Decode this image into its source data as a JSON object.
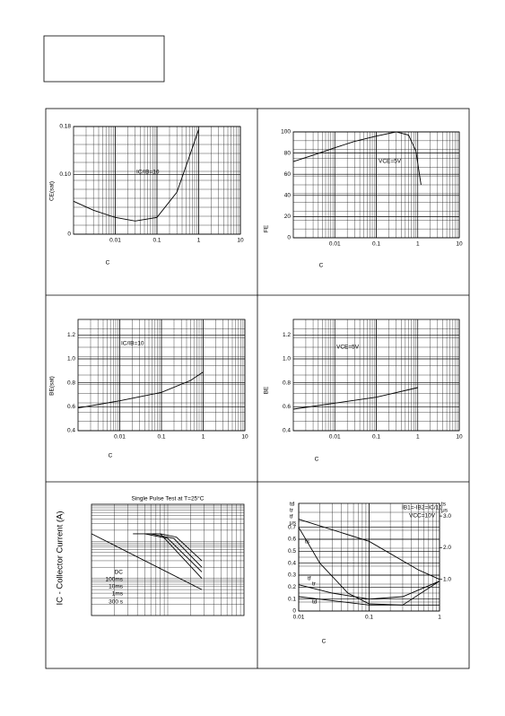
{
  "chart_data": [
    {
      "type": "line",
      "ylabel": "CE(sat)",
      "xlabel": "C",
      "annotations": [
        "IC/IB=10"
      ],
      "log_x": true,
      "grid": true,
      "xlim": [
        0.001,
        10
      ],
      "xticks": [
        0.01,
        0.1,
        1,
        10
      ],
      "ylim": [
        0,
        0.18
      ],
      "yticks": [
        0,
        {
          "value": 0.1,
          "label": "0.10"
        },
        0.18
      ],
      "x": [
        0.001,
        0.003,
        0.01,
        0.03,
        0.1,
        0.3,
        0.6,
        1
      ],
      "series": [
        {
          "color": "#000000",
          "values": [
            0.055,
            0.04,
            0.028,
            0.022,
            0.028,
            0.07,
            0.13,
            0.175
          ]
        }
      ]
    },
    {
      "type": "line",
      "ylabel": "FE",
      "xlabel": "C",
      "annotations": [
        "VCE=5V"
      ],
      "log_x": true,
      "grid": true,
      "xlim": [
        0.001,
        10
      ],
      "xticks": [
        0.01,
        0.1,
        1,
        10
      ],
      "ylim": [
        0,
        100
      ],
      "yticks": [
        0,
        20,
        40,
        60,
        80,
        100
      ],
      "x": [
        0.001,
        0.003,
        0.01,
        0.03,
        0.1,
        0.3,
        0.6,
        0.9,
        1.2
      ],
      "series": [
        {
          "color": "#000000",
          "values": [
            72,
            78,
            85,
            91,
            96,
            100,
            97,
            82,
            50
          ]
        }
      ]
    },
    {
      "type": "line",
      "ylabel": "BE(sat)",
      "xlabel": "C",
      "annotations": [
        "IC/IB=10"
      ],
      "log_x": true,
      "grid": true,
      "xlim": [
        0.001,
        10
      ],
      "xticks": [
        0.01,
        0.1,
        1,
        10
      ],
      "ylim": [
        0.4,
        1.33
      ],
      "yticks": [
        0.4,
        0.6,
        0.8,
        {
          "value": 1.0,
          "label": "1.0"
        },
        1.2
      ],
      "x": [
        0.001,
        0.01,
        0.1,
        0.5,
        1
      ],
      "series": [
        {
          "color": "#000000",
          "values": [
            0.59,
            0.65,
            0.72,
            0.82,
            0.89
          ]
        }
      ]
    },
    {
      "type": "line",
      "ylabel": "BE",
      "xlabel": "C",
      "annotations": [
        "VCE=5V"
      ],
      "log_x": true,
      "grid": true,
      "xlim": [
        0.001,
        10
      ],
      "xticks": [
        0.01,
        0.1,
        1,
        10
      ],
      "ylim": [
        0.4,
        1.33
      ],
      "yticks": [
        0.4,
        0.6,
        0.8,
        {
          "value": 1.0,
          "label": "1.0"
        },
        1.2
      ],
      "x": [
        0.001,
        0.01,
        0.1,
        1
      ],
      "series": [
        {
          "color": "#000000",
          "values": [
            0.58,
            0.63,
            0.68,
            0.76
          ]
        }
      ]
    },
    {
      "type": "line",
      "title": "Single Pulse Test at T=25°C",
      "ylabel": "IC - Collector Current (A)",
      "log_x": true,
      "log_y": true,
      "grid": true,
      "xlim": [
        1,
        100
      ],
      "ylim": [
        0.01,
        10
      ],
      "series": [
        {
          "name": "DC",
          "color": "#000000",
          "x": [
            1,
            28
          ],
          "values": [
            1.6,
            0.05
          ]
        },
        {
          "name": "100ms",
          "color": "#000000",
          "x": [
            3.5,
            8,
            28
          ],
          "values": [
            1.6,
            1.6,
            0.1
          ]
        },
        {
          "name": "10ms",
          "color": "#000000",
          "x": [
            5,
            10,
            28
          ],
          "values": [
            1.6,
            1.2,
            0.15
          ]
        },
        {
          "name": "1ms",
          "color": "#000000",
          "x": [
            6,
            12,
            28
          ],
          "values": [
            1.6,
            1.2,
            0.2
          ]
        },
        {
          "name": "300 s",
          "color": "#000000",
          "x": [
            8,
            13,
            28
          ],
          "values": [
            1.6,
            1.3,
            0.3
          ]
        }
      ]
    },
    {
      "type": "line",
      "xlabel": "C",
      "annotations": [
        "IB1=-IB2=IC/10",
        "VCC=10V"
      ],
      "ylabel_lines": [
        "td",
        "tr",
        "tf",
        "μs"
      ],
      "y2label_lines": [
        "ts",
        "μs"
      ],
      "log_x": true,
      "grid": true,
      "xlim": [
        0.01,
        1
      ],
      "xticks": [
        0.01,
        0.1,
        1
      ],
      "ylim": [
        0,
        0.9
      ],
      "yticks": [
        0,
        0.1,
        0.2,
        0.3,
        0.4,
        0.5,
        0.6,
        0.7
      ],
      "y2lim": [
        0,
        3.4
      ],
      "y2ticks": [
        {
          "value": 1,
          "label": "1.0"
        },
        {
          "value": 2,
          "label": "2.0"
        },
        {
          "value": 3,
          "label": "3.0"
        }
      ],
      "series": [
        {
          "name": "ts",
          "color": "#000000",
          "axis": "y2",
          "x": [
            0.01,
            0.1,
            0.5,
            1
          ],
          "values": [
            2.9,
            2.2,
            1.3,
            1.0
          ]
        },
        {
          "name": "tf",
          "color": "#000000",
          "x": [
            0.01,
            0.02,
            0.05,
            0.1,
            0.3,
            1
          ],
          "values": [
            0.7,
            0.4,
            0.15,
            0.06,
            0.05,
            0.25
          ]
        },
        {
          "name": "tr",
          "color": "#000000",
          "x": [
            0.01,
            0.03,
            0.1,
            0.3,
            1
          ],
          "values": [
            0.22,
            0.15,
            0.1,
            0.12,
            0.25
          ]
        },
        {
          "name": "td",
          "color": "#000000",
          "x": [
            0.01,
            0.1,
            1
          ],
          "values": [
            0.12,
            0.05,
            0.05
          ]
        }
      ]
    }
  ]
}
